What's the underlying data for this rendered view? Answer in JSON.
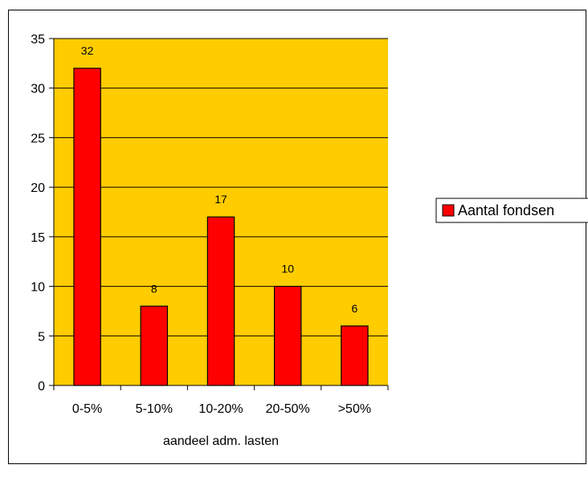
{
  "chart_data": {
    "type": "bar",
    "categories": [
      "0-5%",
      "5-10%",
      "10-20%",
      "20-50%",
      ">50%"
    ],
    "series": [
      {
        "name": "Aantal fondsen",
        "values": [
          32,
          8,
          17,
          10,
          6
        ]
      }
    ],
    "xlabel": "aandeel adm. lasten",
    "ylabel": "",
    "ylim": [
      0,
      35
    ],
    "yticks": [
      0,
      5,
      10,
      15,
      20,
      25,
      30,
      35
    ],
    "data_labels": [
      "32",
      "8",
      "17",
      "10",
      "6"
    ],
    "grid": true,
    "legend_position": "right",
    "colors": {
      "bar": "#ff0000",
      "plot_background": "#ffcc00",
      "gridline": "#000000"
    }
  }
}
